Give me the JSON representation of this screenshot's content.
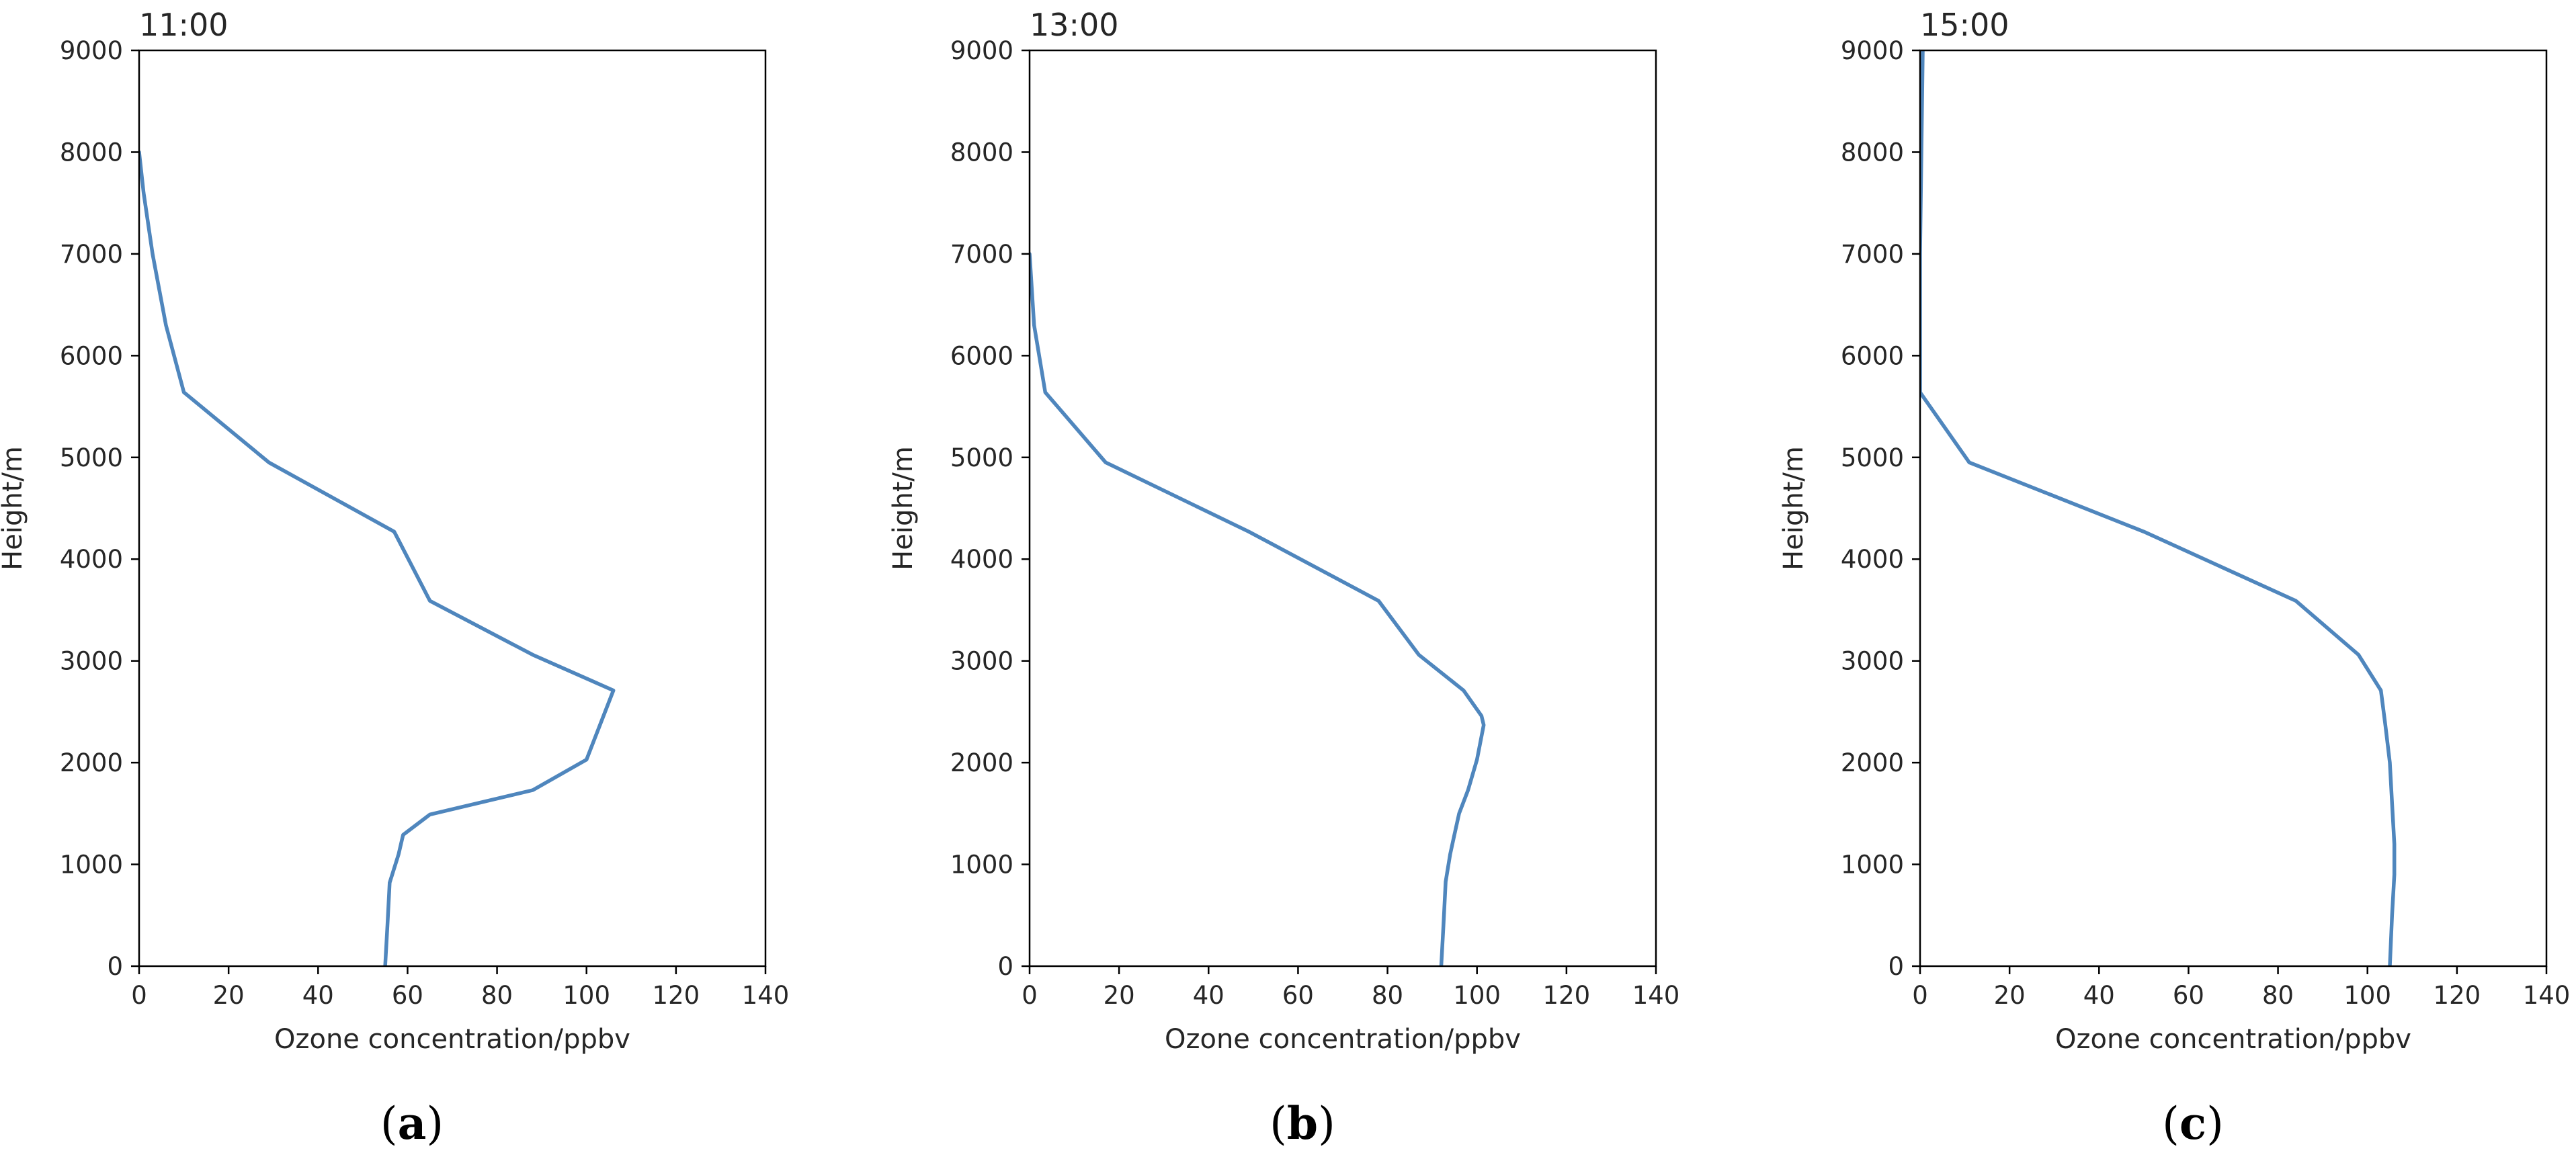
{
  "chart_data": [
    {
      "type": "line",
      "title": "11:00",
      "caption_letter": "a",
      "xlabel": "Ozone concentration/ppbv",
      "ylabel": "Height/m",
      "xlim": [
        0,
        140
      ],
      "ylim": [
        0,
        9000
      ],
      "xticks": [
        0,
        20,
        40,
        60,
        80,
        100,
        120,
        140
      ],
      "yticks": [
        0,
        1000,
        2000,
        3000,
        4000,
        5000,
        6000,
        7000,
        8000,
        9000
      ],
      "grid": false,
      "color": "#4f86bd",
      "series": [
        {
          "x": [
            55,
            55.5,
            56,
            58,
            59,
            65,
            88,
            100,
            103,
            106,
            88,
            65,
            57,
            29,
            10,
            6,
            3,
            1,
            0
          ],
          "y": [
            0,
            400,
            820,
            1100,
            1290,
            1490,
            1730,
            2030,
            2370,
            2710,
            3060,
            3590,
            4270,
            4950,
            5640,
            6300,
            7000,
            7600,
            8000
          ]
        }
      ]
    },
    {
      "type": "line",
      "title": "13:00",
      "caption_letter": "b",
      "xlabel": "Ozone concentration/ppbv",
      "ylabel": "Height/m",
      "xlim": [
        0,
        140
      ],
      "ylim": [
        0,
        9000
      ],
      "xticks": [
        0,
        20,
        40,
        60,
        80,
        100,
        120,
        140
      ],
      "yticks": [
        0,
        1000,
        2000,
        3000,
        4000,
        5000,
        6000,
        7000,
        8000,
        9000
      ],
      "grid": false,
      "color": "#4f86bd",
      "series": [
        {
          "x": [
            92,
            92.5,
            93,
            94,
            95,
            96,
            98,
            100,
            101.5,
            101,
            97,
            87,
            78,
            49,
            17,
            3.5,
            1,
            0
          ],
          "y": [
            0,
            400,
            830,
            1100,
            1300,
            1500,
            1730,
            2030,
            2370,
            2460,
            2710,
            3060,
            3590,
            4270,
            4950,
            5640,
            6300,
            7000
          ]
        }
      ]
    },
    {
      "type": "line",
      "title": "15:00",
      "caption_letter": "c",
      "xlabel": "Ozone concentration/ppbv",
      "ylabel": "Height/m",
      "xlim": [
        0,
        140
      ],
      "ylim": [
        0,
        9000
      ],
      "xticks": [
        0,
        20,
        40,
        60,
        80,
        100,
        120,
        140
      ],
      "yticks": [
        0,
        1000,
        2000,
        3000,
        4000,
        5000,
        6000,
        7000,
        8000,
        9000
      ],
      "grid": false,
      "color": "#4f86bd",
      "series": [
        {
          "x": [
            105,
            105.5,
            106,
            106,
            105.5,
            105,
            104,
            103,
            98,
            84,
            50,
            11,
            0,
            0,
            0.3,
            0.6
          ],
          "y": [
            0,
            500,
            900,
            1200,
            1600,
            2000,
            2370,
            2710,
            3060,
            3590,
            4270,
            4950,
            5640,
            7000,
            8000,
            9000
          ]
        }
      ]
    }
  ]
}
